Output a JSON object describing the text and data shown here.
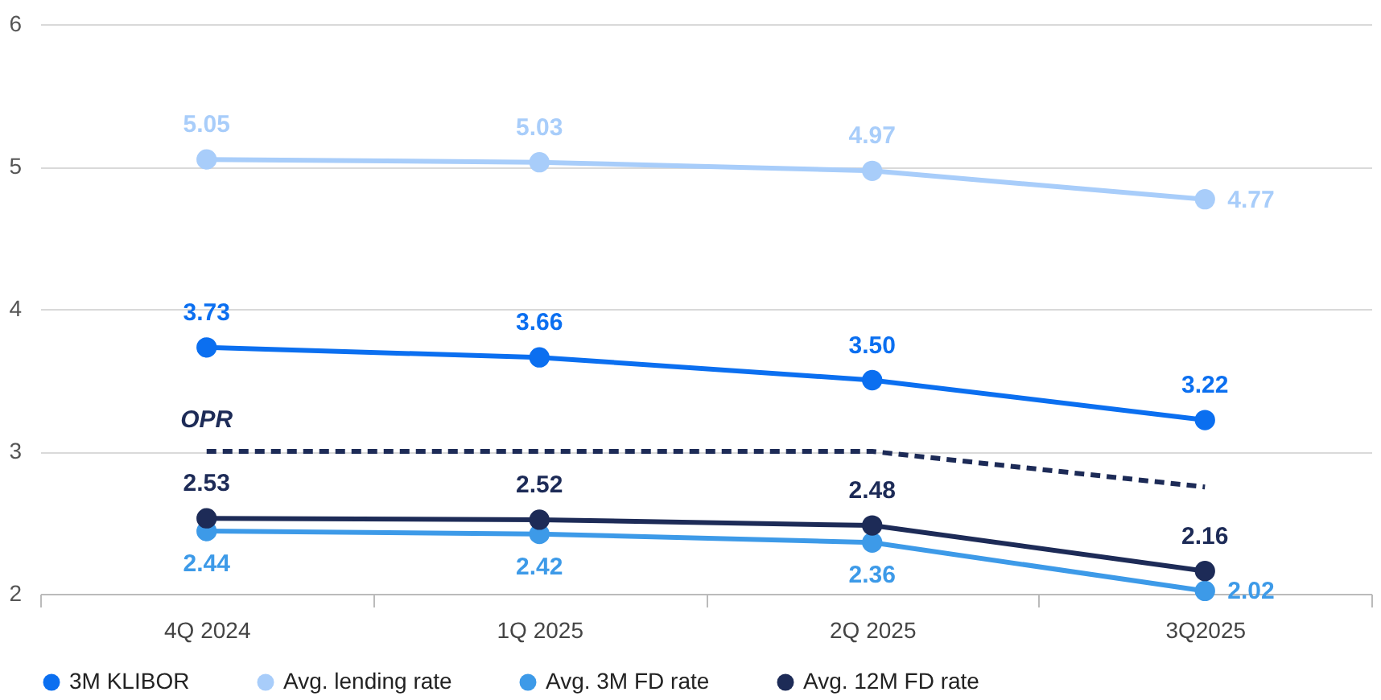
{
  "chart_data": {
    "type": "line",
    "categories": [
      "4Q 2024",
      "1Q 2025",
      "2Q 2025",
      "3Q2025"
    ],
    "ylim": [
      2,
      6
    ],
    "yticks": [
      2,
      3,
      4,
      5,
      6
    ],
    "grid": "y",
    "legend": "bottom",
    "marker": "circle",
    "line_style": "solid",
    "series": [
      {
        "name": "3M KLIBOR",
        "color": "#0b6ff0",
        "values": [
          3.73,
          3.66,
          3.5,
          3.22
        ],
        "value_labels": [
          "3.73",
          "3.66",
          "3.50",
          "3.22"
        ]
      },
      {
        "name": "Avg. lending rate",
        "color": "#a8cdfa",
        "values": [
          5.05,
          5.03,
          4.97,
          4.77
        ],
        "value_labels": [
          "5.05",
          "5.03",
          "4.97",
          "4.77"
        ]
      },
      {
        "name": "Avg. 3M FD rate",
        "color": "#3d9ae8",
        "values": [
          2.44,
          2.42,
          2.36,
          2.02
        ],
        "value_labels": [
          "2.44",
          "2.42",
          "2.36",
          "2.02"
        ]
      },
      {
        "name": "Avg. 12M FD rate",
        "color": "#1d2b57",
        "values": [
          2.53,
          2.52,
          2.48,
          2.16
        ],
        "value_labels": [
          "2.53",
          "2.52",
          "2.48",
          "2.16"
        ]
      },
      {
        "name": "OPR",
        "color": "#1d2b57",
        "values": [
          3,
          3,
          3,
          2.75
        ],
        "line_style": "dashed",
        "marker": "none"
      }
    ]
  }
}
